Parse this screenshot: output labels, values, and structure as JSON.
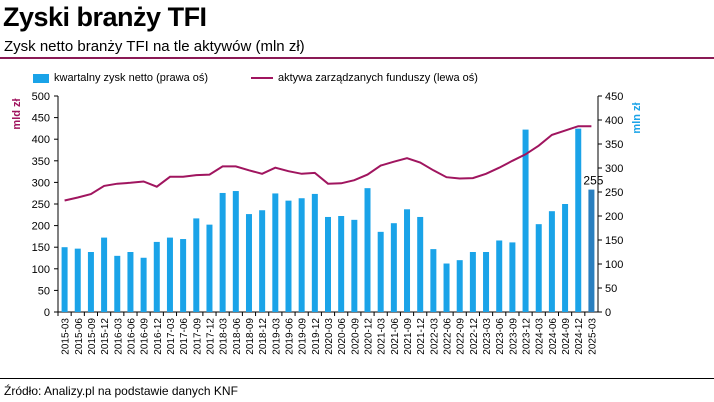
{
  "header": {
    "title": "Zyski branży TFI",
    "subtitle": "Zysk netto branży TFI na tle aktywów (mln zł)"
  },
  "footer": {
    "source": "Źródło: Analizy.pl na podstawie danych KNF"
  },
  "colors": {
    "bar": "#1aa3e8",
    "bar_last": "#2a7fbf",
    "line": "#a0155f",
    "rule": "#8a1a55",
    "left_axis_label": "#a0155f",
    "right_axis_label": "#1aa3e8"
  },
  "chart_data": {
    "type": "bar",
    "categories": [
      "2015-03",
      "2015-06",
      "2015-09",
      "2015-12",
      "2016-03",
      "2016-06",
      "2016-09",
      "2016-12",
      "2017-03",
      "2017-06",
      "2017-09",
      "2017-12",
      "2018-03",
      "2018-06",
      "2018-09",
      "2018-12",
      "2019-03",
      "2019-06",
      "2019-09",
      "2019-12",
      "2020-03",
      "2020-06",
      "2020-09",
      "2020-12",
      "2021-03",
      "2021-06",
      "2021-09",
      "2021-12",
      "2022-03",
      "2022-06",
      "2022-09",
      "2022-12",
      "2023-03",
      "2023-06",
      "2023-09",
      "2023-12",
      "2024-03",
      "2024-06",
      "2024-09",
      "2024-12",
      "2025-03"
    ],
    "series": [
      {
        "name": "kwartalny zysk netto (prawa oś)",
        "axis": "right",
        "type": "bar",
        "values": [
          135,
          132,
          125,
          155,
          117,
          125,
          113,
          146,
          155,
          152,
          195,
          182,
          248,
          252,
          204,
          212,
          247,
          232,
          237,
          246,
          198,
          200,
          192,
          258,
          167,
          185,
          214,
          198,
          131,
          101,
          108,
          125,
          125,
          149,
          145,
          380,
          183,
          210,
          225,
          382,
          255
        ]
      },
      {
        "name": "aktywa zarządzanych funduszy (lewa oś)",
        "axis": "left",
        "type": "line",
        "values": [
          258,
          265,
          273,
          292,
          297,
          299,
          302,
          290,
          313,
          313,
          317,
          318,
          337,
          337,
          328,
          320,
          334,
          326,
          320,
          322,
          297,
          298,
          305,
          318,
          339,
          348,
          356,
          346,
          328,
          312,
          309,
          310,
          320,
          334,
          350,
          365,
          385,
          410,
          420,
          430,
          430
        ]
      }
    ],
    "ylabel_left": "mld zł",
    "ylabel_right": "mln zł",
    "ylim_left": [
      0,
      500
    ],
    "ylim_right": [
      0,
      450
    ],
    "yticks_left": [
      0,
      50,
      100,
      150,
      200,
      250,
      300,
      350,
      400,
      450,
      500
    ],
    "yticks_right": [
      0,
      50,
      100,
      150,
      200,
      250,
      300,
      350,
      400,
      450
    ],
    "annotations": [
      {
        "index": 40,
        "text": "255"
      }
    ],
    "grid": false,
    "legend": "top"
  }
}
